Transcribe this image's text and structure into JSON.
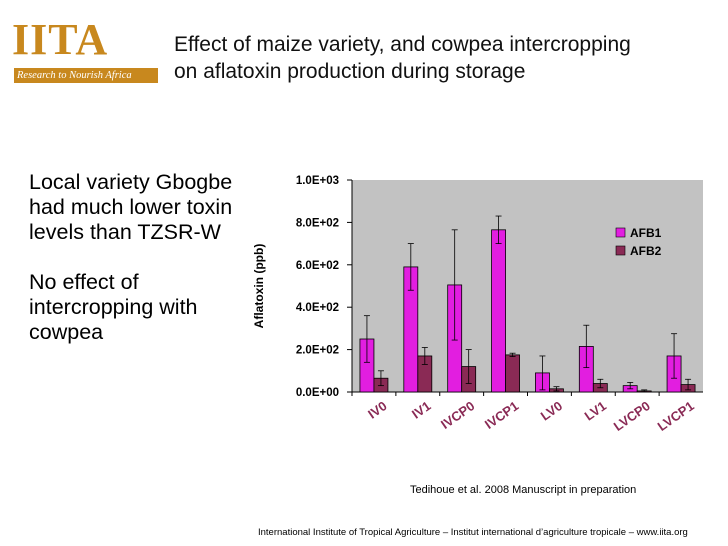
{
  "logo": {
    "name_prefix": "I",
    "name_highlight": "IT",
    "name_suffix": "A",
    "tagline": "Research to Nourish Africa"
  },
  "title": {
    "line1": "Effect of maize variety, and cowpea intercropping",
    "line2": "on aflatoxin production during storage"
  },
  "side_text": {
    "paragraph1": "Local variety Gbogbe had much lower toxin levels than TZSR-W",
    "paragraph2": "No effect of intercropping with cowpea"
  },
  "citation": "Tedihoue et al. 2008 Manuscript in preparation",
  "footer": "International Institute of Tropical Agriculture – Institut international d’agriculture tropicale – www.iita.org",
  "colors": {
    "afb1": "#e21ee0",
    "afb2": "#8a2a55",
    "plot_bg": "#c2c2c2",
    "brand": "#c8881e"
  },
  "chart_data": {
    "type": "bar",
    "title": "",
    "xlabel": "",
    "ylabel": "Aflatoxin (ppb)",
    "ylim": [
      0,
      1000
    ],
    "yticks": [
      0,
      200,
      400,
      600,
      800,
      1000
    ],
    "ytick_labels": [
      "0.0E+00",
      "2.0E+02",
      "4.0E+02",
      "6.0E+02",
      "8.0E+02",
      "1.0E+03"
    ],
    "grid": false,
    "legend": "top-right",
    "categories": [
      "IV0",
      "IV1",
      "IVCP0",
      "IVCP1",
      "LV0",
      "LV1",
      "LVCP0",
      "LVCP1"
    ],
    "series": [
      {
        "name": "AFB1",
        "values": [
          250,
          590,
          505,
          765,
          90,
          215,
          30,
          170
        ],
        "errors": [
          110,
          110,
          260,
          65,
          80,
          100,
          15,
          105
        ]
      },
      {
        "name": "AFB2",
        "values": [
          65,
          170,
          120,
          175,
          15,
          40,
          5,
          35
        ],
        "errors": [
          35,
          40,
          80,
          8,
          10,
          20,
          5,
          25
        ]
      }
    ]
  }
}
